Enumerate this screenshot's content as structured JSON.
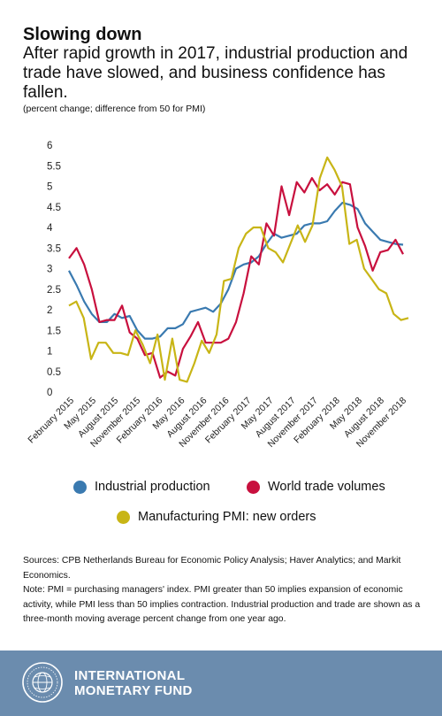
{
  "title": "Slowing down",
  "subtitle": "After rapid growth in 2017, industrial production and trade have slowed, and business confidence has fallen.",
  "units": "(percent change; difference from 50 for PMI)",
  "notes": {
    "sources": "Sources: CPB Netherlands Bureau for Economic Policy Analysis; Haver Analytics; and Markit Economics.",
    "note": "Note: PMI = purchasing managers' index. PMI greater than 50 implies expansion of economic activity, while PMI less than 50 implies contraction. Industrial production and trade are shown as a three-month moving average percent change from one year ago."
  },
  "footer": {
    "line1": "INTERNATIONAL",
    "line2": "MONETARY FUND",
    "logo_icon": "imf-seal-icon"
  },
  "colors": {
    "industrial": "#3a7ab0",
    "trade": "#c8103e",
    "pmi": "#c8b516",
    "footer_bg": "#6b8cae"
  },
  "chart_data": {
    "type": "line",
    "ylim": [
      0,
      6
    ],
    "yticks": [
      "0",
      "0.5",
      "1",
      "1.5",
      "2",
      "2.5",
      "3",
      "3.5",
      "4",
      "4.5",
      "5",
      "5.5",
      "6"
    ],
    "xlabels": [
      "February 2015",
      "May 2015",
      "August 2015",
      "November 2015",
      "February 2016",
      "May 2016",
      "August 2016",
      "November 2016",
      "February 2017",
      "May 2017",
      "August 2017",
      "November 2017",
      "February 2018",
      "May 2018",
      "August 2018",
      "November 2018"
    ],
    "grid": false,
    "legend_position": "bottom",
    "series": [
      {
        "name": "Industrial production",
        "color": "#3a7ab0",
        "values": [
          2.95,
          2.6,
          2.2,
          1.9,
          1.7,
          1.7,
          1.9,
          1.8,
          1.85,
          1.5,
          1.3,
          1.3,
          1.35,
          1.55,
          1.55,
          1.65,
          1.95,
          2.0,
          2.05,
          1.95,
          2.15,
          2.5,
          3.0,
          3.1,
          3.15,
          3.3,
          3.6,
          3.85,
          3.75,
          3.8,
          3.85,
          4.05,
          4.1,
          4.1,
          4.15,
          4.4,
          4.6,
          4.55,
          4.45,
          4.1,
          3.9,
          3.7,
          3.65,
          3.6,
          3.58
        ]
      },
      {
        "name": "World trade volumes",
        "color": "#c8103e",
        "values": [
          3.25,
          3.5,
          3.1,
          2.5,
          1.7,
          1.75,
          1.75,
          2.1,
          1.45,
          1.3,
          0.9,
          0.95,
          0.35,
          0.5,
          0.4,
          1.05,
          1.35,
          1.7,
          1.2,
          1.2,
          1.2,
          1.3,
          1.7,
          2.4,
          3.3,
          3.1,
          4.1,
          3.8,
          5.0,
          4.3,
          5.1,
          4.85,
          5.2,
          4.9,
          5.05,
          4.8,
          5.1,
          5.05,
          4.0,
          3.55,
          2.95,
          3.4,
          3.45,
          3.7,
          3.35
        ]
      },
      {
        "name": "Manufacturing PMI: new orders",
        "color": "#c8b516",
        "values": [
          2.1,
          2.2,
          1.8,
          0.8,
          1.2,
          1.2,
          0.95,
          0.95,
          0.9,
          1.5,
          1.15,
          0.7,
          1.4,
          0.3,
          1.3,
          0.3,
          0.25,
          0.7,
          1.25,
          0.95,
          1.4,
          2.7,
          2.75,
          3.5,
          3.85,
          4.0,
          4.0,
          3.5,
          3.4,
          3.15,
          3.6,
          4.05,
          3.65,
          4.05,
          5.2,
          5.7,
          5.4,
          5.0,
          3.6,
          3.7,
          3.0,
          2.75,
          2.5,
          2.4,
          1.9,
          1.75,
          1.8
        ]
      }
    ]
  }
}
